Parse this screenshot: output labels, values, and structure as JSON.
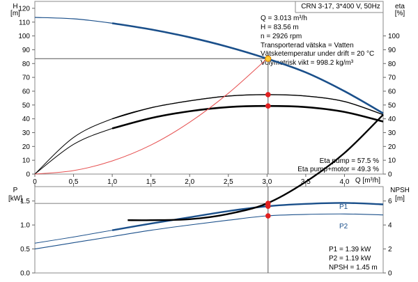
{
  "chart_data": [
    {
      "type": "line",
      "title": "CRN 3-17, 3*400 V, 50Hz",
      "x_label": "Q [m³/h]",
      "x_ticks": [
        "0",
        "0.5",
        "1.0",
        "1.5",
        "2.0",
        "2.5",
        "3.0",
        "3.5",
        "4.0"
      ],
      "xlim": [
        0,
        4.5
      ],
      "left_axis": {
        "label": "H",
        "unit": "[m]",
        "ylim": [
          0,
          125
        ],
        "ticks": [
          "0",
          "10",
          "20",
          "30",
          "40",
          "50",
          "60",
          "70",
          "80",
          "90",
          "100",
          "110",
          "120"
        ]
      },
      "right_axis": {
        "label": "eta",
        "unit": "[%]",
        "ylim": [
          0,
          125
        ],
        "ticks": [
          "0",
          "10",
          "20",
          "30",
          "40",
          "50",
          "60",
          "70",
          "80",
          "90",
          "100"
        ]
      },
      "grid": false,
      "series": [
        {
          "name": "H",
          "role": "head",
          "color": "#1a4f8a",
          "x": [
            0,
            0.5,
            1.0,
            1.5,
            2.0,
            2.5,
            3.0,
            3.5,
            4.0,
            4.5
          ],
          "y": [
            113.4,
            112.4,
            109.2,
            104.7,
            99.0,
            92.0,
            83.56,
            73.6,
            60.0,
            44.0
          ]
        },
        {
          "name": "Eta pump",
          "role": "eta-pump",
          "color": "#000000",
          "x": [
            0,
            0.5,
            1.0,
            1.5,
            2.0,
            2.5,
            3.0,
            3.5,
            4.0,
            4.5
          ],
          "y": [
            0,
            26.5,
            40.0,
            48.0,
            53.0,
            56.5,
            57.5,
            56.5,
            52.5,
            43.0
          ]
        },
        {
          "name": "Eta pump+motor",
          "role": "eta-pump-motor",
          "color": "#000000",
          "x": [
            0,
            0.5,
            1.0,
            1.5,
            2.0,
            2.5,
            3.0,
            3.5,
            4.0,
            4.5
          ],
          "y": [
            0,
            21.5,
            33.0,
            40.5,
            45.5,
            48.5,
            49.3,
            48.5,
            45.0,
            38.0
          ]
        },
        {
          "name": "System curve",
          "role": "system",
          "color": "#e65050",
          "x": [
            0,
            0.5,
            1.0,
            1.5,
            2.0,
            2.5,
            3.0
          ],
          "y": [
            0,
            2.5,
            9.5,
            21.0,
            37.5,
            58.5,
            83.56
          ]
        }
      ],
      "duty_point": {
        "x": 3.013,
        "y": 83.56
      },
      "eta_points": [
        {
          "x": 3.013,
          "y": 57.5
        },
        {
          "x": 3.013,
          "y": 49.3
        }
      ],
      "info": [
        "Q = 3.013 m³/h",
        "H = 83.56 m",
        "n = 2926 rpm",
        "Transporterad vätska = Vatten",
        "Vätsketemperatur under drift = 20 °C",
        "Volymetrisk vikt = 998.2 kg/m³"
      ],
      "annotations": [
        "Eta pump = 57.5 %",
        "Eta pump+motor = 49.3 %"
      ]
    },
    {
      "type": "line",
      "x_label": "Q [m³/h]",
      "xlim": [
        0,
        4.5
      ],
      "left_axis": {
        "label": "P",
        "unit": "[kW]",
        "ylim": [
          0,
          1.8
        ],
        "ticks": [
          "0.0",
          "0.5",
          "1.0",
          "1.5"
        ]
      },
      "right_axis": {
        "label": "NPSH",
        "unit": "[m]",
        "ylim": [
          0,
          7.2
        ],
        "ticks": [
          "0",
          "2",
          "4",
          "6"
        ]
      },
      "grid": false,
      "series": [
        {
          "name": "P1",
          "role": "p1",
          "color": "#1a4f8a",
          "x": [
            0,
            0.5,
            1.0,
            1.5,
            2.0,
            2.5,
            3.0,
            3.5,
            4.0,
            4.5
          ],
          "y": [
            0.62,
            0.75,
            0.89,
            1.03,
            1.16,
            1.29,
            1.39,
            1.44,
            1.46,
            1.43
          ]
        },
        {
          "name": "P2",
          "role": "p2",
          "color": "#1a4f8a",
          "x": [
            0,
            0.5,
            1.0,
            1.5,
            2.0,
            2.5,
            3.0,
            3.5,
            4.0,
            4.5
          ],
          "y": [
            0.5,
            0.63,
            0.76,
            0.89,
            1.0,
            1.1,
            1.19,
            1.22,
            1.23,
            1.21
          ]
        },
        {
          "name": "NPSH",
          "role": "npsh",
          "color": "#000000",
          "x": [
            1.2,
            1.5,
            2.0,
            2.5,
            3.0,
            3.5,
            4.0,
            4.5
          ],
          "y": [
            1.1,
            1.1,
            1.12,
            1.23,
            1.45,
            1.9,
            2.5,
            3.3
          ]
        }
      ],
      "points": [
        {
          "x": 3.013,
          "y": 1.39
        },
        {
          "x": 3.013,
          "y": 1.19
        }
      ],
      "npsh_point": {
        "x": 3.013,
        "y": 1.45
      },
      "annotations": [
        "P1 = 1.39 kW",
        "P2 = 1.19 kW",
        "NPSH = 1.45 m"
      ]
    }
  ]
}
